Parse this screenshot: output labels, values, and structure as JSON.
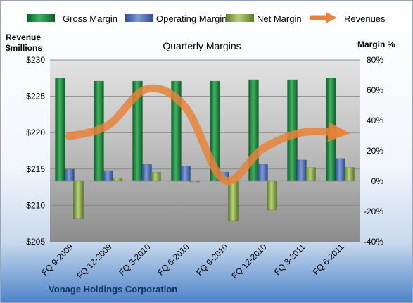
{
  "chart_data": {
    "type": "bar",
    "title": "Quarterly Margins",
    "footer": "Vonage Holdings Corporation",
    "left_axis": {
      "title_line1": "Revenue",
      "title_line2": "$millions",
      "min": 205,
      "max": 230,
      "step": 5,
      "prefix": "$"
    },
    "right_axis": {
      "title": "Margin %",
      "min": -40,
      "max": 80,
      "step": 20,
      "suffix": "%"
    },
    "categories": [
      "FQ 9-2009",
      "FQ 12-2009",
      "FQ 3-2010",
      "FQ 6-2010",
      "FQ 9-2010",
      "FQ 12-2010",
      "FQ 3-2011",
      "FQ 6-2011"
    ],
    "series": [
      {
        "name": "Gross Margin",
        "axis": "right",
        "color": "#1e8a3c",
        "values": [
          68,
          66,
          66,
          66,
          66,
          67,
          67,
          68
        ]
      },
      {
        "name": "Operating Margin",
        "axis": "right",
        "color": "#4d6fb8",
        "values": [
          8,
          7,
          11,
          10,
          6,
          11,
          14,
          15
        ]
      },
      {
        "name": "Net Margin",
        "axis": "right",
        "color": "#8fb04a",
        "values": [
          -25,
          2,
          6,
          0,
          -26,
          -19,
          9,
          9
        ]
      },
      {
        "name": "Revenues",
        "axis": "left",
        "type": "line",
        "color": "#e8823a",
        "values": [
          219.5,
          221.0,
          226.0,
          223.5,
          213.5,
          217.8,
          220.0,
          220.0
        ]
      }
    ],
    "legend_position": "top"
  }
}
